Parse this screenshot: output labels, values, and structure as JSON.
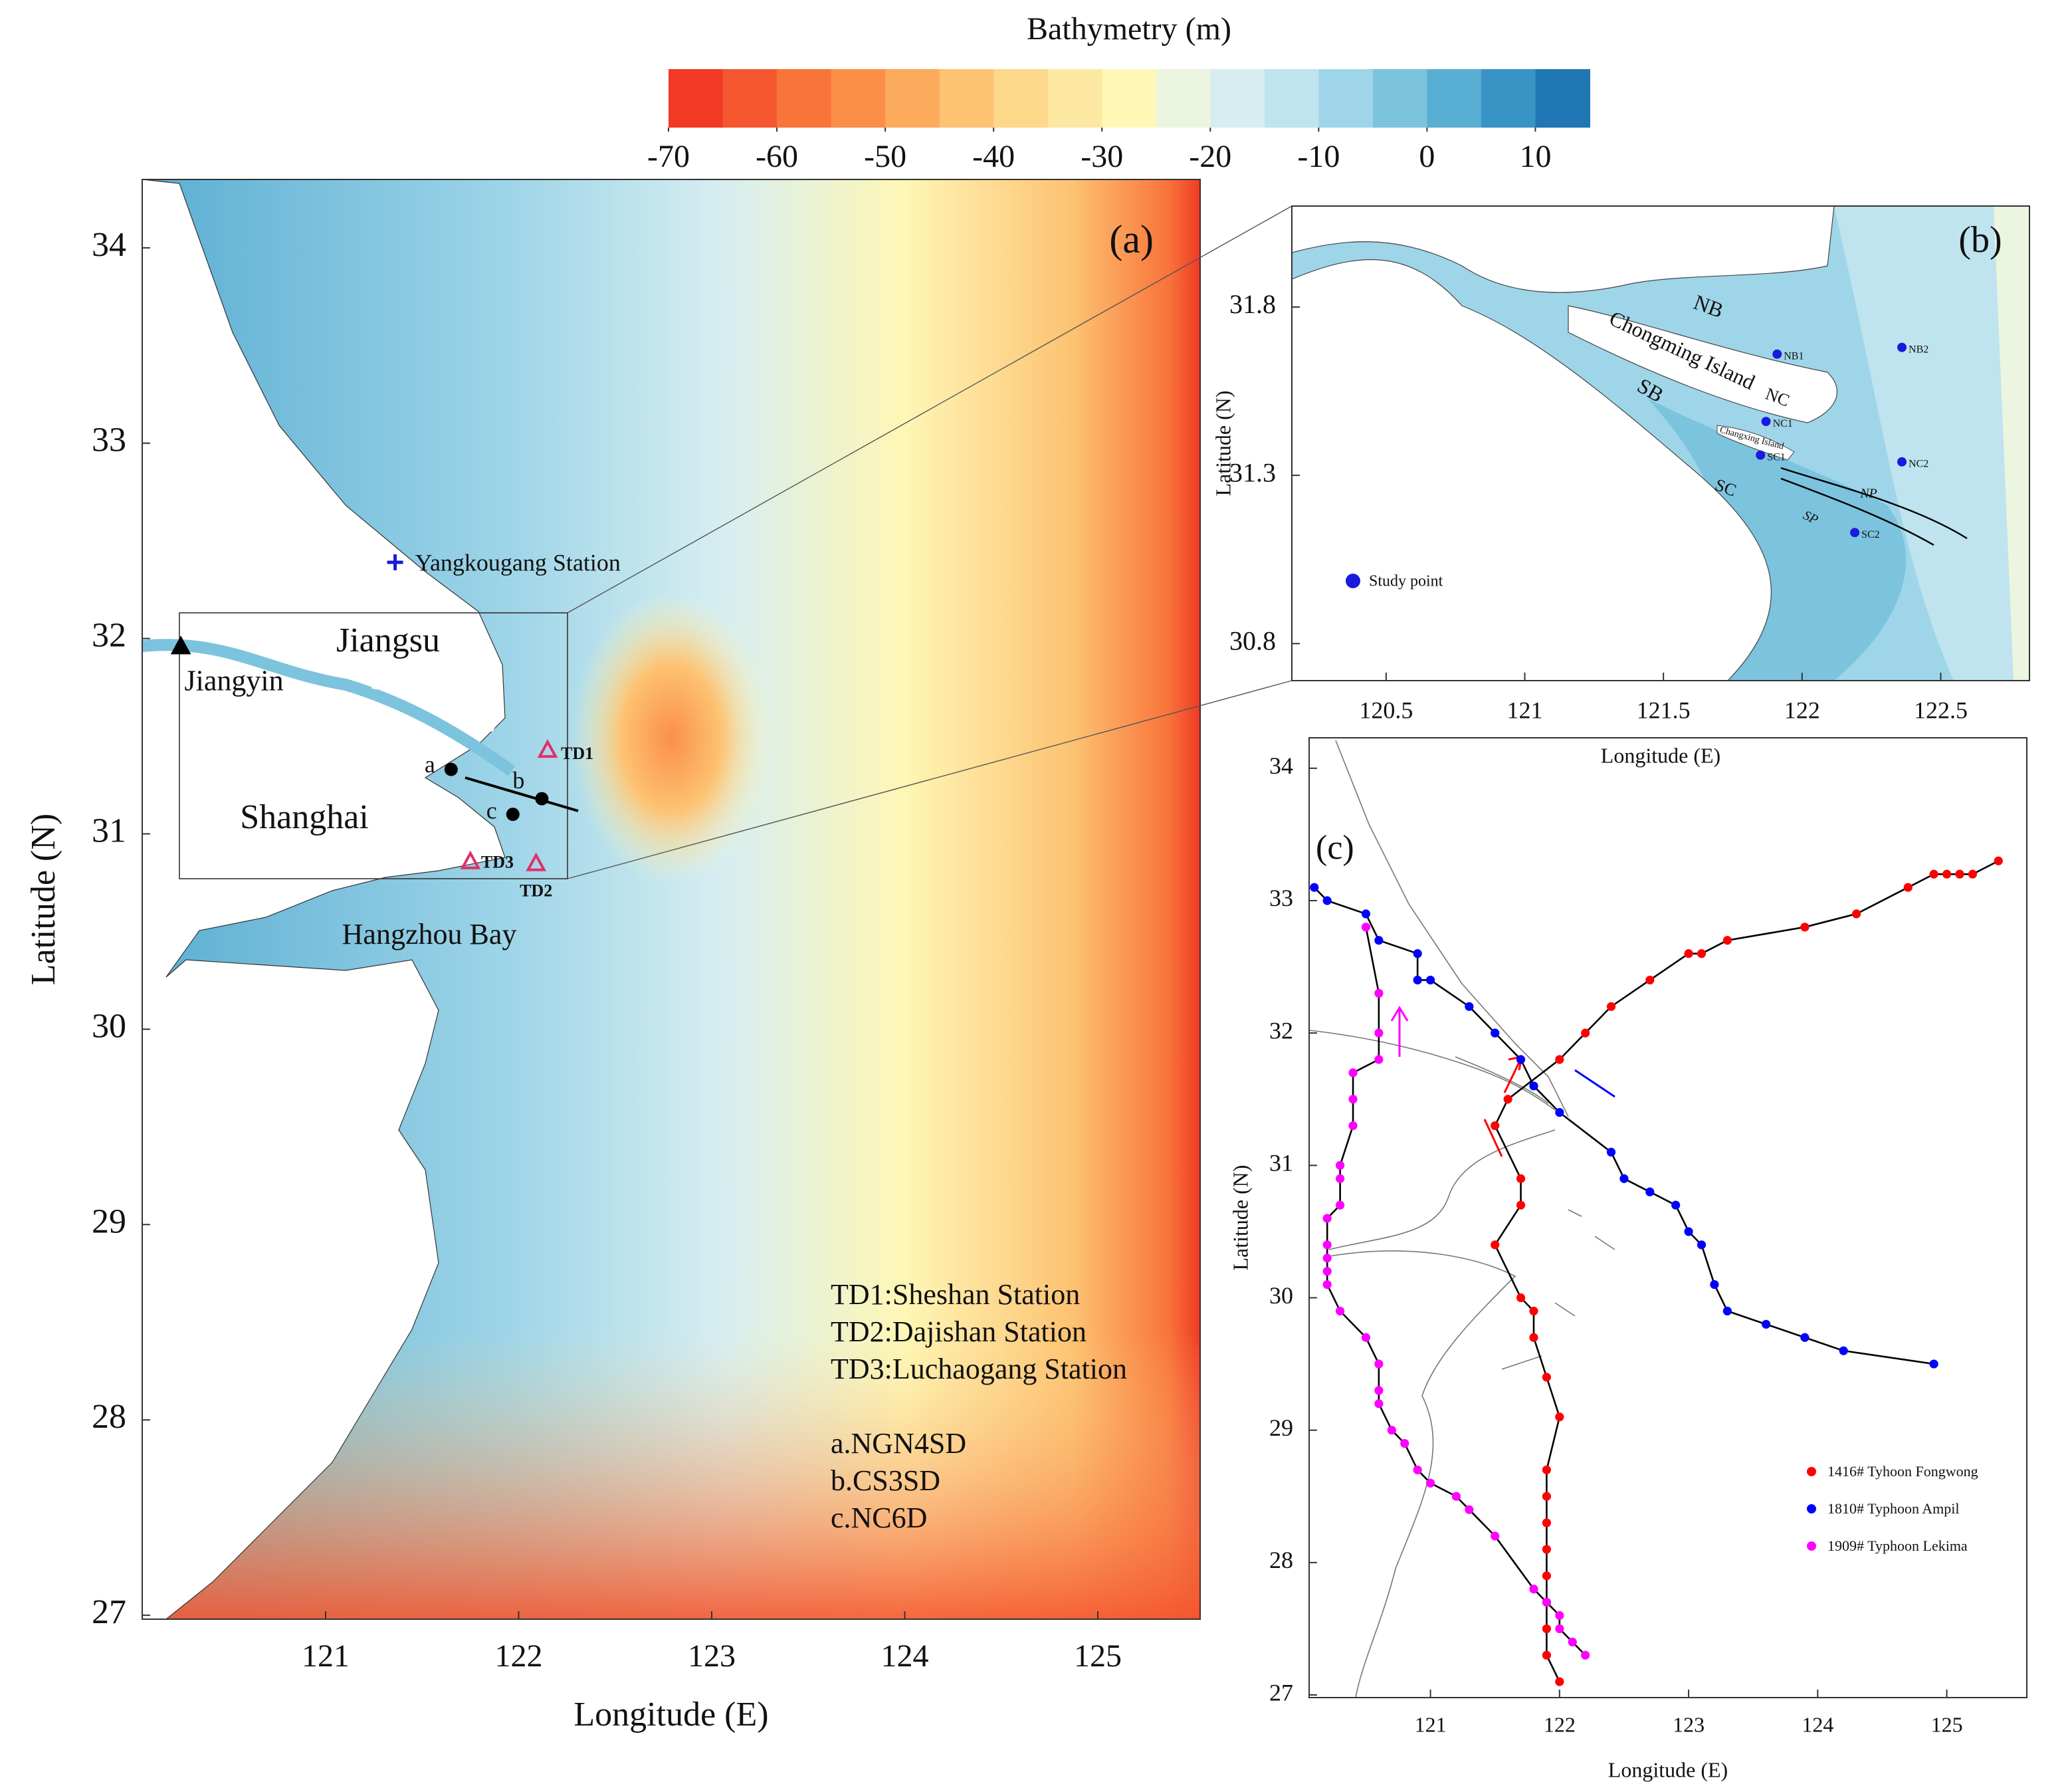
{
  "chart_data": [
    {
      "type": "colorbar",
      "title": "Bathymetry (m)",
      "colors": [
        "#f03a24",
        "#f4572f",
        "#f8743a",
        "#fb8f48",
        "#fcaa5c",
        "#fdc272",
        "#fdd88a",
        "#fde8a2",
        "#fef7b6",
        "#ebf5df",
        "#d7eef1",
        "#bfe4ef",
        "#9fd5e8",
        "#7cc3de",
        "#59aed3",
        "#3a93c5",
        "#2077b4"
      ],
      "xlim": [
        -70,
        15
      ],
      "xticks": [
        -70,
        -60,
        -50,
        -40,
        -30,
        -20,
        -10,
        0,
        10
      ]
    },
    {
      "type": "map",
      "x_label": "Longitude (E)",
      "y_label": "Latitude (N)",
      "xlim": [
        120.05,
        125.53
      ],
      "ylim": [
        26.98,
        34.35
      ],
      "xticks": [
        121,
        122,
        123,
        124,
        125
      ],
      "yticks": [
        27,
        28,
        29,
        30,
        31,
        32,
        33,
        34
      ],
      "annotations": [
        "(a)",
        "Jiangsu",
        "Shanghai",
        "Hangzhou Bay"
      ],
      "points": [
        {
          "label": "Jiangyin",
          "x": 120.25,
          "y": 31.96,
          "marker": "triangle",
          "color": "#000000"
        },
        {
          "label": "Yangkougang Station",
          "x": 121.36,
          "y": 32.39,
          "marker": "cross",
          "color": "#1a1adc"
        },
        {
          "label": "TD1",
          "x": 122.15,
          "y": 31.43,
          "marker": "open-triangle",
          "color": "#e0306a"
        },
        {
          "label": "TD2",
          "x": 122.09,
          "y": 30.85,
          "marker": "open-triangle",
          "color": "#e0306a"
        },
        {
          "label": "TD3",
          "x": 121.75,
          "y": 30.86,
          "marker": "open-triangle",
          "color": "#e0306a"
        },
        {
          "label": "a",
          "x": 121.65,
          "y": 31.33,
          "marker": "dot",
          "color": "#000000"
        },
        {
          "label": "b",
          "x": 122.12,
          "y": 31.18,
          "marker": "dot",
          "color": "#000000"
        },
        {
          "label": "c",
          "x": 121.97,
          "y": 31.1,
          "marker": "dot",
          "color": "#000000"
        }
      ],
      "notes": [
        "TD1:Sheshan Station",
        "TD2:Dajishan Station",
        "TD3:Luchaogang Station",
        "a.NGN4SD",
        "b.CS3SD",
        "c.NC6D"
      ]
    },
    {
      "type": "map",
      "x_label": "Longitude (E)",
      "y_label": "Latitude (N)",
      "xlim": [
        120.16,
        122.82
      ],
      "ylim": [
        30.69,
        32.1
      ],
      "xticks": [
        120.5,
        121,
        121.5,
        122,
        122.5
      ],
      "yticks": [
        30.8,
        31.3,
        31.8
      ],
      "annotations": [
        "(b)",
        "NB",
        "Chongming Island",
        "SB",
        "NC",
        "Changxing Island",
        "SC",
        "NP",
        "SP"
      ],
      "points": [
        {
          "label": "NB1",
          "x": 121.91,
          "y": 31.66,
          "marker": "dot",
          "color": "#1a1adc"
        },
        {
          "label": "NB2",
          "x": 122.36,
          "y": 31.68,
          "marker": "dot",
          "color": "#1a1adc"
        },
        {
          "label": "NC1",
          "x": 121.87,
          "y": 31.46,
          "marker": "dot",
          "color": "#1a1adc"
        },
        {
          "label": "SC1",
          "x": 121.85,
          "y": 31.36,
          "marker": "dot",
          "color": "#1a1adc"
        },
        {
          "label": "NC2",
          "x": 122.36,
          "y": 31.34,
          "marker": "dot",
          "color": "#1a1adc"
        },
        {
          "label": "SC2",
          "x": 122.19,
          "y": 31.13,
          "marker": "dot",
          "color": "#1a1adc"
        }
      ],
      "legend": "Study point"
    },
    {
      "type": "track",
      "x_label": "Longitude (E)",
      "y_label": "Latitude (N)",
      "annotation": "(c)",
      "xlim": [
        120.06,
        125.62
      ],
      "ylim": [
        26.98,
        34.23
      ],
      "xticks": [
        121,
        122,
        123,
        124,
        125
      ],
      "yticks": [
        27,
        28,
        29,
        30,
        31,
        32,
        33,
        34
      ],
      "series": [
        {
          "name": "1416# Tyhoon Fongwong",
          "color": "#ff0000",
          "x": [
            122.0,
            121.9,
            121.9,
            121.9,
            121.9,
            121.9,
            121.9,
            121.9,
            121.9,
            122.0,
            121.9,
            121.8,
            121.8,
            121.7,
            121.5,
            121.7,
            121.7,
            121.5,
            121.6,
            122.0,
            122.2,
            122.4,
            122.7,
            123.0,
            123.1,
            123.3,
            123.9,
            124.3,
            124.7,
            124.9,
            125.0,
            125.1,
            125.2,
            125.4
          ],
          "y": [
            27.1,
            27.3,
            27.5,
            27.7,
            27.9,
            28.1,
            28.3,
            28.5,
            28.7,
            29.1,
            29.4,
            29.7,
            29.9,
            30.0,
            30.4,
            30.7,
            30.9,
            31.3,
            31.5,
            31.8,
            32.0,
            32.2,
            32.4,
            32.6,
            32.6,
            32.7,
            32.8,
            32.9,
            33.1,
            33.2,
            33.2,
            33.2,
            33.2,
            33.3
          ]
        },
        {
          "name": "1810# Typhoon Ampil",
          "color": "#0000ff",
          "x": [
            120.1,
            120.2,
            120.5,
            120.6,
            120.9,
            120.9,
            121.0,
            121.3,
            121.5,
            121.7,
            121.8,
            122.0,
            122.4,
            122.5,
            122.7,
            122.9,
            123.0,
            123.1,
            123.2,
            123.3,
            123.6,
            123.9,
            124.2,
            124.9
          ],
          "y": [
            33.1,
            33.0,
            32.9,
            32.7,
            32.6,
            32.4,
            32.4,
            32.2,
            32.0,
            31.8,
            31.6,
            31.4,
            31.1,
            30.9,
            30.8,
            30.7,
            30.5,
            30.4,
            30.1,
            29.9,
            29.8,
            29.7,
            29.6,
            29.5
          ]
        },
        {
          "name": "1909# Typhoon Lekima",
          "color": "#ff00ff",
          "x": [
            122.2,
            122.1,
            122.0,
            122.0,
            121.9,
            121.8,
            121.5,
            121.3,
            121.2,
            121.0,
            120.9,
            120.8,
            120.7,
            120.6,
            120.6,
            120.6,
            120.5,
            120.3,
            120.2,
            120.2,
            120.2,
            120.2,
            120.2,
            120.3,
            120.3,
            120.3,
            120.4,
            120.4,
            120.4,
            120.6,
            120.6,
            120.6,
            120.5
          ],
          "y": [
            27.3,
            27.4,
            27.5,
            27.6,
            27.7,
            27.8,
            28.2,
            28.4,
            28.5,
            28.6,
            28.7,
            28.9,
            29.0,
            29.2,
            29.3,
            29.5,
            29.7,
            29.9,
            30.1,
            30.2,
            30.3,
            30.4,
            30.6,
            30.7,
            30.9,
            31.0,
            31.3,
            31.5,
            31.7,
            31.8,
            32.0,
            32.3,
            32.8
          ]
        }
      ]
    }
  ]
}
